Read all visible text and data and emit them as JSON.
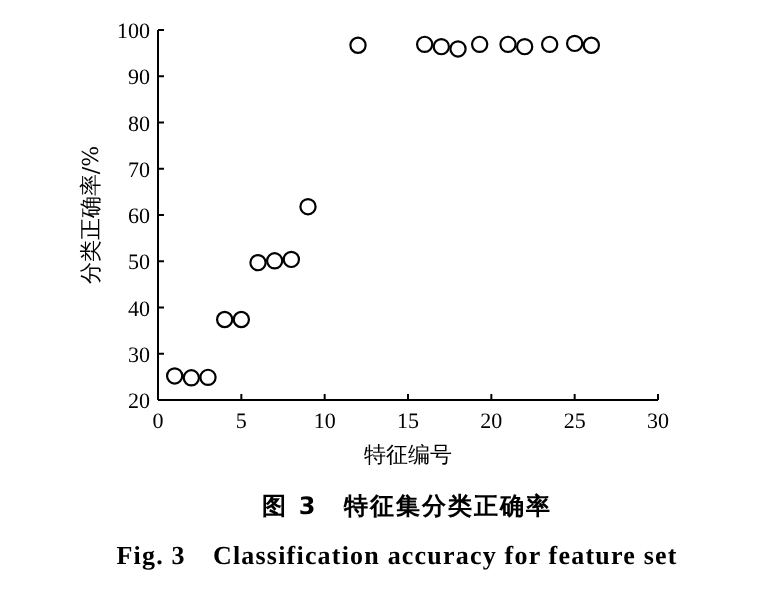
{
  "chart_data": {
    "type": "scatter",
    "title": "图 3　特征集分类正确率",
    "subtitle": "Fig. 3　Classification accuracy for feature set",
    "xlabel": "特征编号",
    "ylabel": "分类正确率/%",
    "series": [
      {
        "color": "#000000",
        "x": [
          1,
          2,
          3,
          4,
          5,
          6,
          7,
          8,
          9,
          12,
          16,
          17,
          18,
          19.3,
          21,
          22,
          23.5,
          25,
          26
        ],
        "values": [
          25.2,
          24.8,
          24.9,
          37.4,
          37.4,
          49.7,
          50.1,
          50.4,
          61.8,
          96.7,
          96.9,
          96.4,
          95.9,
          96.9,
          96.9,
          96.4,
          96.9,
          97.1,
          96.7
        ]
      }
    ],
    "xlim": [
      0,
      30
    ],
    "xticks": [
      0,
      5,
      10,
      15,
      20,
      25,
      30
    ],
    "ylim": [
      20,
      100
    ],
    "yticks": [
      20,
      30,
      40,
      50,
      60,
      70,
      80,
      90,
      100
    ],
    "marker": "circle",
    "grid": false
  }
}
